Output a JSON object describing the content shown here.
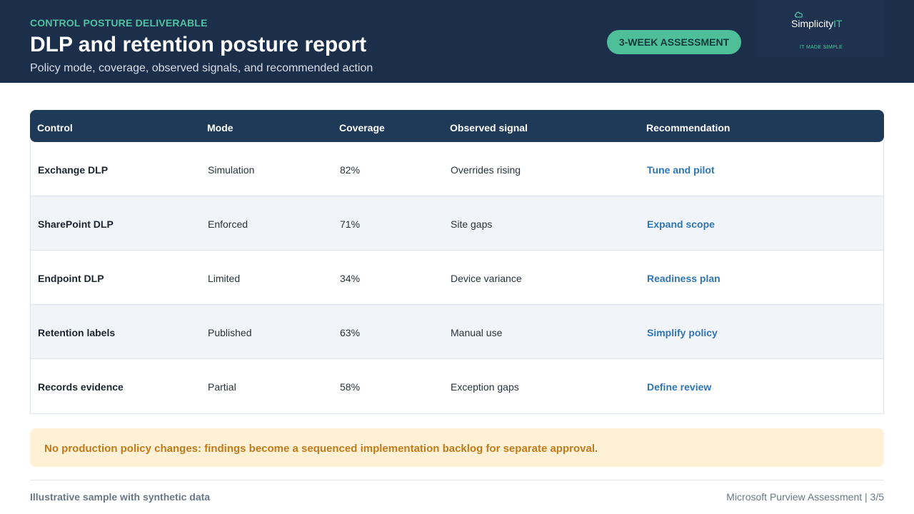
{
  "header": {
    "eyebrow": "CONTROL POSTURE DELIVERABLE",
    "title": "DLP and retention posture report",
    "subtitle": "Policy mode, coverage, observed signals, and recommended action",
    "badge": "3-WEEK ASSESSMENT",
    "logo": {
      "word_main": "Simplicity",
      "word_accent": "IT",
      "tagline": "IT MADE SIMPLE",
      "icon": "cloud-icon"
    }
  },
  "table": {
    "columns": [
      "Control",
      "Mode",
      "Coverage",
      "Observed signal",
      "Recommendation"
    ],
    "rows": [
      {
        "control": "Exchange DLP",
        "mode": "Simulation",
        "coverage": "82%",
        "signal": "Overrides rising",
        "recommendation": "Tune and pilot"
      },
      {
        "control": "SharePoint DLP",
        "mode": "Enforced",
        "coverage": "71%",
        "signal": "Site gaps",
        "recommendation": "Expand scope"
      },
      {
        "control": "Endpoint DLP",
        "mode": "Limited",
        "coverage": "34%",
        "signal": "Device variance",
        "recommendation": "Readiness plan"
      },
      {
        "control": "Retention labels",
        "mode": "Published",
        "coverage": "63%",
        "signal": "Manual use",
        "recommendation": "Simplify policy"
      },
      {
        "control": "Records evidence",
        "mode": "Partial",
        "coverage": "58%",
        "signal": "Exception gaps",
        "recommendation": "Define review"
      }
    ]
  },
  "note": "No production policy changes: findings become a sequenced implementation backlog for separate approval.",
  "footer": {
    "left": "Illustrative sample with synthetic data",
    "right": "Microsoft Purview Assessment | 3/5"
  },
  "colors": {
    "header_bg": "#1b2e4a",
    "accent": "#4fc3a1",
    "link": "#2e75b6",
    "note_bg": "#fff1d6",
    "note_text": "#c07a1b"
  }
}
